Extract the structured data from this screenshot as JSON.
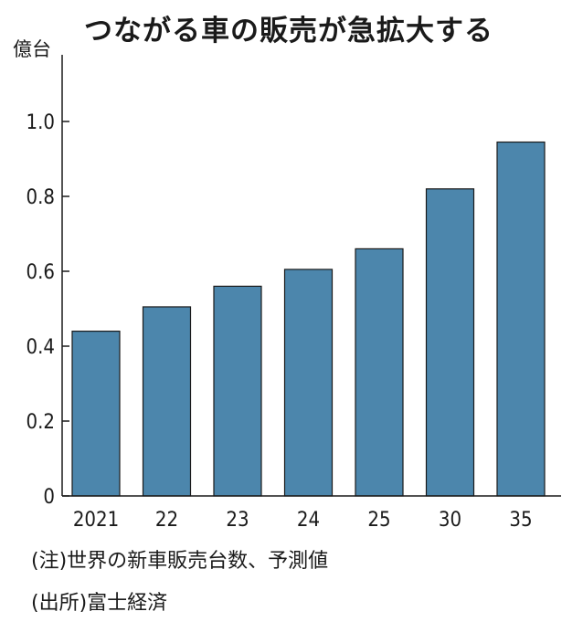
{
  "title": "つながる車の販売が急拡大する",
  "unit_label": "億台",
  "notes": {
    "note": "(注)世界の新車販売台数、予測値",
    "source": "(出所)富士経済"
  },
  "colors": {
    "bar": "#4c86ac",
    "bar_stroke": "#1a1a1a",
    "axis": "#1a1a1a"
  },
  "chart_data": {
    "type": "bar",
    "categories": [
      "2021",
      "22",
      "23",
      "24",
      "25",
      "30",
      "35"
    ],
    "values": [
      0.44,
      0.505,
      0.56,
      0.605,
      0.66,
      0.82,
      0.945
    ],
    "title": "つながる車の販売が急拡大する",
    "ylabel": "億台",
    "ylim": [
      0,
      1.0
    ],
    "yticks": [
      0,
      0.2,
      0.4,
      0.6,
      0.8,
      1.0
    ],
    "ytick_labels": [
      "0",
      "0.2",
      "0.4",
      "0.6",
      "0.8",
      "1.0"
    ],
    "grid": false,
    "legend": "none"
  }
}
